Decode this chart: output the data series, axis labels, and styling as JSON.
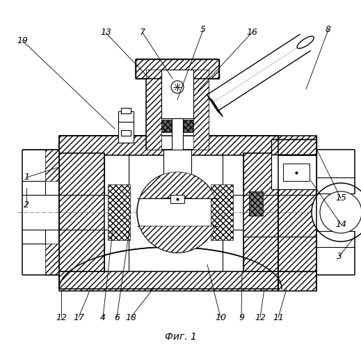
{
  "background_color": "#ffffff",
  "fig_label": "Фиг. 1",
  "lw_main": 1.1,
  "lw_thin": 0.6,
  "hatch_dense": "////",
  "hatch_cross": "xxxx",
  "centerline_color": "#888888"
}
